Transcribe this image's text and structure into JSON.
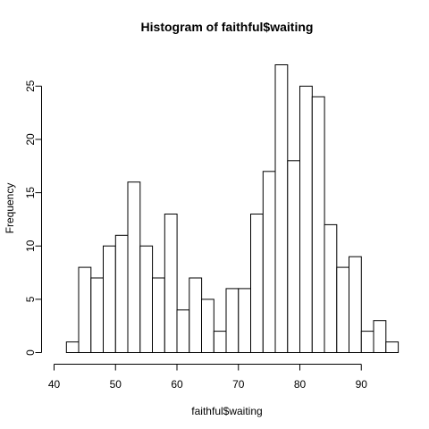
{
  "chart_data": {
    "type": "bar",
    "title": "Histogram of faithful$waiting",
    "xlabel": "faithful$waiting",
    "ylabel": "Frequency",
    "bin_edges": [
      42,
      44,
      46,
      48,
      50,
      52,
      54,
      56,
      58,
      60,
      62,
      64,
      66,
      68,
      70,
      72,
      74,
      76,
      78,
      80,
      82,
      84,
      86,
      88,
      90,
      92,
      94,
      96
    ],
    "values": [
      1,
      8,
      7,
      10,
      11,
      16,
      10,
      7,
      13,
      4,
      7,
      5,
      2,
      6,
      6,
      13,
      17,
      27,
      18,
      25,
      24,
      12,
      8,
      9,
      2,
      3,
      1
    ],
    "xlim": [
      40,
      96
    ],
    "ylim": [
      0,
      27
    ],
    "x_ticks": [
      40,
      50,
      60,
      70,
      80,
      90
    ],
    "y_ticks": [
      0,
      5,
      10,
      15,
      20,
      25
    ],
    "grid": false,
    "colors": {
      "bar_fill": "#ffffff",
      "bar_stroke": "#000000"
    }
  }
}
